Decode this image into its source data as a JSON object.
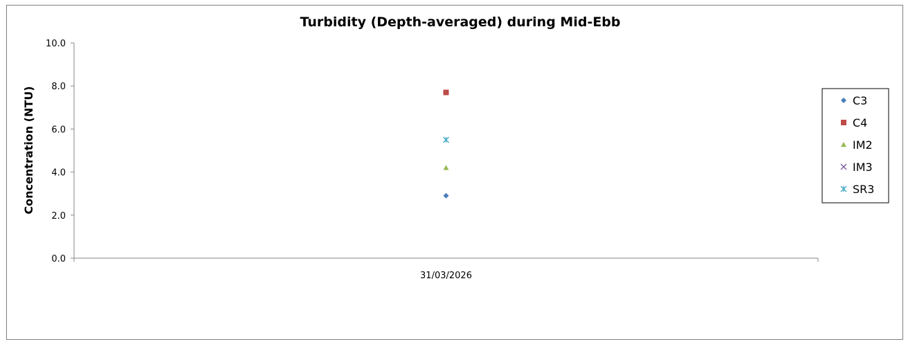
{
  "chart_data": {
    "type": "scatter",
    "title": "Turbidity (Depth-averaged) during Mid-Ebb",
    "xlabel": "",
    "ylabel": "Concentration (NTU)",
    "ylim": [
      0,
      10
    ],
    "yticks": [
      "0.0",
      "2.0",
      "4.0",
      "6.0",
      "8.0",
      "10.0"
    ],
    "categories": [
      "31/03/2026"
    ],
    "grid": false,
    "legend_position": "right",
    "series": [
      {
        "name": "C3",
        "values": [
          2.9
        ],
        "color": "#4a7ebb",
        "marker": "diamond"
      },
      {
        "name": "C4",
        "values": [
          7.7
        ],
        "color": "#be4b48",
        "marker": "square"
      },
      {
        "name": "IM2",
        "values": [
          4.2
        ],
        "color": "#98b954",
        "marker": "triangle"
      },
      {
        "name": "IM3",
        "values": [
          null
        ],
        "color": "#7d60a0",
        "marker": "x"
      },
      {
        "name": "SR3",
        "values": [
          5.5
        ],
        "color": "#46aac5",
        "marker": "star"
      }
    ]
  }
}
